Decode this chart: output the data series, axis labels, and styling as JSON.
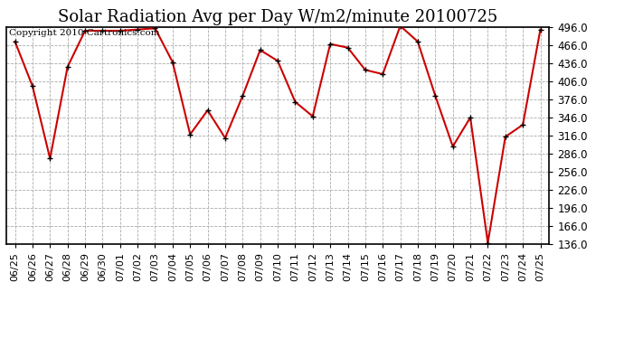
{
  "title": "Solar Radiation Avg per Day W/m2/minute 20100725",
  "copyright_text": "Copyright 2010 Cartronics.com",
  "dates": [
    "06/25",
    "06/26",
    "06/27",
    "06/28",
    "06/29",
    "06/30",
    "07/01",
    "07/02",
    "07/03",
    "07/04",
    "07/05",
    "07/06",
    "07/07",
    "07/08",
    "07/09",
    "07/10",
    "07/11",
    "07/12",
    "07/13",
    "07/14",
    "07/15",
    "07/16",
    "07/17",
    "07/18",
    "07/19",
    "07/20",
    "07/21",
    "07/22",
    "07/23",
    "07/24",
    "07/25"
  ],
  "values": [
    472,
    398,
    278,
    430,
    490,
    490,
    490,
    492,
    494,
    438,
    318,
    358,
    312,
    382,
    458,
    440,
    372,
    348,
    468,
    462,
    425,
    418,
    498,
    472,
    382,
    298,
    346,
    138,
    314,
    334,
    492
  ],
  "line_color": "#cc0000",
  "marker_color": "#000000",
  "bg_color": "#ffffff",
  "plot_bg_color": "#ffffff",
  "grid_color": "#aaaaaa",
  "ylim_min": 136.0,
  "ylim_max": 496.0,
  "ytick_step": 30.0,
  "title_fontsize": 13,
  "axis_fontsize": 8.5,
  "copyright_fontsize": 7.5
}
